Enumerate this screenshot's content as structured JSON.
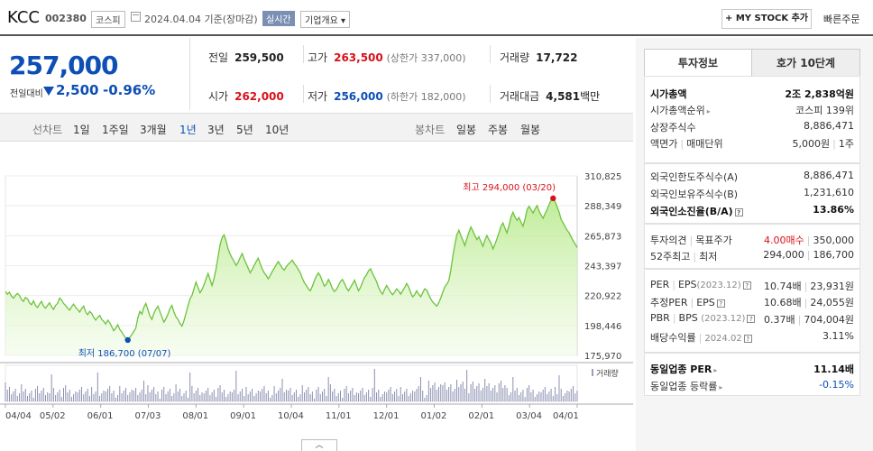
{
  "header": {
    "name": "KCC",
    "code": "002380",
    "market": "코스피",
    "date": "2024.04.04 기준(장마감)",
    "realtime": "실시간",
    "company_info": "기업개요",
    "company_info_arrow": "▾",
    "mystock": "+ MY STOCK 추가",
    "quick_order": "빠른주문"
  },
  "quote": {
    "price": "257,000",
    "change_label": "전일대비",
    "change": "2,500",
    "change_pct": "-0.96%",
    "prev_label": "전일",
    "prev": "259,500",
    "high_label": "고가",
    "high": "263,500",
    "upper_limit": "(상한가 337,000)",
    "volume_label": "거래량",
    "volume": "17,722",
    "open_label": "시가",
    "open": "262,000",
    "low_label": "저가",
    "low": "256,000",
    "lower_limit": "(하한가 182,000)",
    "amount_label": "거래대금",
    "amount": "4,581",
    "amount_unit": "백만"
  },
  "period_tabs": {
    "line_label": "선차트",
    "items": [
      "1일",
      "1주일",
      "3개월",
      "1년",
      "3년",
      "5년",
      "10년"
    ],
    "active": "1년",
    "candle_label": "봉차트",
    "candle_items": [
      "일봉",
      "주봉",
      "월봉"
    ]
  },
  "colors": {
    "up": "#d8111b",
    "down": "#0d4fb5",
    "line": "#6cc33c",
    "fill": "#bdeb93"
  },
  "chart_data": {
    "type": "area",
    "y_ticks": [
      "310,825",
      "288,349",
      "265,873",
      "243,397",
      "220,922",
      "198,446",
      "175,970"
    ],
    "ylim": [
      175970,
      310825
    ],
    "x_ticks": [
      "04/04",
      "05/02",
      "06/01",
      "07/03",
      "08/01",
      "09/01",
      "10/04",
      "11/01",
      "12/01",
      "01/02",
      "02/01",
      "03/04",
      "04/01"
    ],
    "max_label": "최고 294,000 (03/20)",
    "min_label": "최저 186,700 (07/07)",
    "volume_label": "거래량",
    "prices": [
      224000,
      222000,
      223500,
      220500,
      219000,
      221000,
      222500,
      221000,
      218000,
      216500,
      219500,
      218500,
      215500,
      214000,
      217000,
      213500,
      212000,
      214500,
      216500,
      213000,
      211500,
      213500,
      215500,
      212500,
      210500,
      213500,
      215000,
      219000,
      217500,
      215000,
      213500,
      211500,
      210000,
      212500,
      214500,
      212000,
      210500,
      208500,
      211000,
      213000,
      208500,
      206500,
      209000,
      207500,
      204500,
      202500,
      204500,
      206000,
      203000,
      201500,
      199500,
      202500,
      200500,
      197500,
      194500,
      196500,
      199000,
      195500,
      193500,
      191000,
      189000,
      187500,
      189500,
      191500,
      194000,
      196500,
      204000,
      209000,
      207000,
      212000,
      215000,
      210500,
      205500,
      203000,
      207500,
      210500,
      213000,
      209000,
      205000,
      201000,
      203500,
      207000,
      211000,
      213500,
      208500,
      205000,
      203000,
      200000,
      198000,
      202000,
      207500,
      213000,
      218500,
      221000,
      226000,
      231000,
      227000,
      223000,
      225500,
      229000,
      233500,
      237500,
      233000,
      228500,
      234000,
      241000,
      250000,
      259000,
      264500,
      266500,
      262000,
      256000,
      252000,
      249000,
      246500,
      243500,
      246000,
      249500,
      252500,
      248500,
      245000,
      241500,
      238000,
      240500,
      243500,
      246500,
      249000,
      245000,
      241000,
      238000,
      236000,
      233500,
      236000,
      239000,
      241500,
      244000,
      246500,
      244000,
      241500,
      240000,
      242500,
      244500,
      246000,
      247500,
      245000,
      243000,
      240500,
      238000,
      234000,
      230500,
      228500,
      226000,
      224500,
      228000,
      232000,
      235500,
      238000,
      235500,
      231500,
      228000,
      229500,
      233000,
      230000,
      226000,
      224000,
      225500,
      228500,
      231500,
      233000,
      230000,
      226500,
      224500,
      227000,
      229500,
      232500,
      228500,
      224500,
      227000,
      231000,
      234500,
      236500,
      239500,
      241000,
      237500,
      234500,
      231500,
      227000,
      224000,
      222000,
      225500,
      228500,
      226000,
      223500,
      221500,
      223500,
      226000,
      224500,
      222000,
      224500,
      227000,
      230000,
      227500,
      223000,
      220000,
      221500,
      224500,
      222000,
      220000,
      223000,
      226000,
      225000,
      221500,
      218500,
      216000,
      214500,
      213000,
      215500,
      219000,
      223500,
      227500,
      229500,
      232000,
      240000,
      250500,
      259000,
      266500,
      270000,
      266000,
      262500,
      258500,
      263500,
      268500,
      272500,
      269500,
      266000,
      263000,
      265000,
      261500,
      258000,
      262500,
      266000,
      263000,
      260500,
      256000,
      259500,
      263500,
      268000,
      273000,
      275500,
      271500,
      268000,
      273500,
      280000,
      283500,
      280000,
      277500,
      279500,
      276000,
      273000,
      278500,
      285500,
      288000,
      285500,
      283000,
      286000,
      288500,
      284500,
      281500,
      279000,
      282500,
      285500,
      289500,
      292500,
      294000,
      291500,
      287500,
      283500,
      278000,
      275500,
      272500,
      270000,
      268000,
      265000,
      262000,
      259500,
      257000
    ]
  },
  "right_panel": {
    "tab_invest": "투자정보",
    "tab_hoga": "호가 10단계",
    "market_cap_label": "시가총액",
    "market_cap": "2조 2,838억원",
    "cap_rank_label": "시가총액순위",
    "cap_rank": "코스피 139위",
    "shares_label": "상장주식수",
    "shares": "8,886,471",
    "par_label": "액면가",
    "trade_unit_label": "매매단위",
    "par": "5,000원",
    "trade_unit": "1주",
    "foreign_limit_label": "외국인한도주식수(A)",
    "foreign_limit": "8,886,471",
    "foreign_hold_label": "외국인보유주식수(B)",
    "foreign_hold": "1,231,610",
    "foreign_ratio_label": "외국인소진율(B/A)",
    "foreign_ratio": "13.86%",
    "opinion_label": "투자의견",
    "target_label": "목표주가",
    "opinion": "4.00매수",
    "target": "350,000",
    "week52_label": "52주최고",
    "low52_label": "최저",
    "high52": "294,000",
    "low52": "186,700",
    "per_label": "PER",
    "eps_label": "EPS",
    "eps_date": "(2023.12)",
    "per": "10.74배",
    "eps": "23,931원",
    "eper_label": "추정PER",
    "eeps_label": "EPS",
    "eper": "10.68배",
    "eeps": "24,055원",
    "pbr_label": "PBR",
    "bps_label": "BPS",
    "bps_date": "(2023.12)",
    "pbr": "0.37배",
    "bps": "704,004원",
    "div_label": "배당수익률",
    "div_date": "2024.02",
    "div": "3.11%",
    "sector_per_label": "동일업종 PER",
    "sector_per": "11.14배",
    "sector_chg_label": "동일업종 등락률",
    "sector_chg": "-0.15%",
    "qmark": "?",
    "arrow": "▸",
    "sep": "|"
  },
  "collapse": "︿"
}
